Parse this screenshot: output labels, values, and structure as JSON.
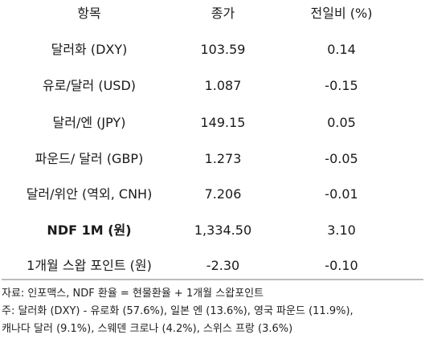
{
  "table": {
    "headers": [
      "항목",
      "종가",
      "전일비 (%)"
    ],
    "rows": [
      {
        "item": "달러화 (DXY)",
        "close": "103.59",
        "change": "0.14"
      },
      {
        "item": "유로/달러 (USD)",
        "close": "1.087",
        "change": "-0.15"
      },
      {
        "item": "달러/엔 (JPY)",
        "close": "149.15",
        "change": "0.05"
      },
      {
        "item": "파운드/ 달러 (GBP)",
        "close": "1.273",
        "change": "-0.05"
      },
      {
        "item": "달러/위안 (역외, CNH)",
        "close": "7.206",
        "change": "-0.01"
      },
      {
        "item": "NDF 1M (원)",
        "close": "1,334.50",
        "change": "3.10"
      },
      {
        "item": "1개월 스왑 포인트 (원)",
        "close": "-2.30",
        "change": "-0.10"
      }
    ]
  },
  "notes": {
    "source": "자료: 인포맥스, NDF 환율 = 현물환율 + 1개월 스왑포인트",
    "note_line1": "주: 달러화 (DXY) - 유로화 (57.6%), 일본 엔 (13.6%), 영국 파운드 (11.9%),",
    "note_line2": "캐나다 달러 (9.1%), 스웨덴 크로나 (4.2%), 스위스 프랑 (3.6%)"
  }
}
